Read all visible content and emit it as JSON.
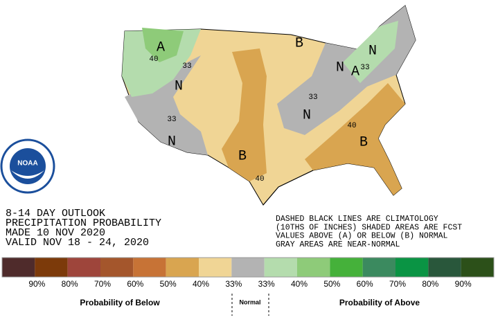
{
  "outlook": {
    "lines": [
      "8-14 DAY OUTLOOK",
      "PRECIPITATION PROBABILITY",
      "MADE  10 NOV 2020",
      "VALID  NOV 18 - 24, 2020"
    ]
  },
  "notes": {
    "lines": [
      "DASHED BLACK LINES ARE CLIMATOLOGY",
      "(10THS OF INCHES) SHADED AREAS ARE FCST",
      "VALUES ABOVE (A) OR BELOW (B) NORMAL",
      "GRAY AREAS ARE NEAR-NORMAL"
    ]
  },
  "logo": {
    "text": "NOAA"
  },
  "map": {
    "labels": [
      "A",
      "A",
      "B",
      "B",
      "B",
      "N",
      "N",
      "N",
      "N",
      "N",
      "33",
      "33",
      "33",
      "33",
      "40",
      "40",
      "40"
    ]
  },
  "legend": {
    "colors": [
      "#4f2b2b",
      "#7c3a0a",
      "#9e453b",
      "#a4562c",
      "#c77336",
      "#d9a550",
      "#f0d595",
      "#b3b3b3",
      "#b4dcad",
      "#8ecb79",
      "#45b13a",
      "#3b8a5f",
      "#0a9444",
      "#29573b",
      "#2c5019"
    ],
    "ticks": [
      "90%",
      "80%",
      "70%",
      "60%",
      "50%",
      "40%",
      "33%",
      "33%",
      "40%",
      "50%",
      "60%",
      "70%",
      "80%",
      "90%"
    ],
    "below": "Probability of Below",
    "normal": "Normal",
    "above": "Probability of Above"
  }
}
